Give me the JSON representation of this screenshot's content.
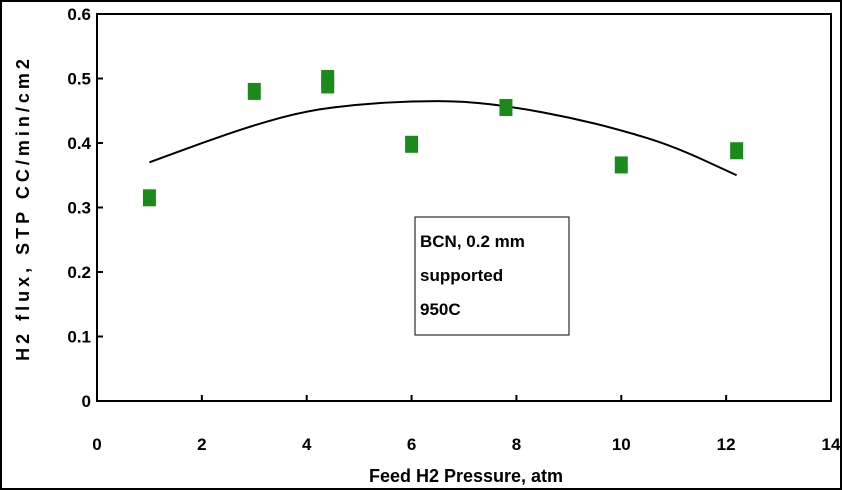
{
  "chart_data": {
    "type": "scatter",
    "xlabel": "Feed H2 Pressure, atm",
    "ylabel": "H2 flux, STP CC/min/cm2",
    "xlim": [
      0,
      14
    ],
    "ylim": [
      0,
      0.6
    ],
    "x_ticks": [
      "0",
      "2",
      "4",
      "6",
      "8",
      "10",
      "12",
      "14"
    ],
    "y_ticks": [
      "0",
      "0.1",
      "0.2",
      "0.3",
      "0.4",
      "0.5",
      "0.6"
    ],
    "grid": false,
    "series": [
      {
        "marker_color": "#1a8a1a",
        "marker": "square",
        "points": [
          {
            "x": 1.0,
            "y": 0.315
          },
          {
            "x": 3.0,
            "y": 0.48
          },
          {
            "x": 4.4,
            "y": 0.49
          },
          {
            "x": 4.4,
            "y": 0.5
          },
          {
            "x": 6.0,
            "y": 0.398
          },
          {
            "x": 7.8,
            "y": 0.455
          },
          {
            "x": 10.0,
            "y": 0.366
          },
          {
            "x": 12.2,
            "y": 0.388
          }
        ]
      }
    ],
    "trendline": {
      "color": "#000000",
      "points": [
        {
          "x": 1.0,
          "y": 0.37
        },
        {
          "x": 2.0,
          "y": 0.4
        },
        {
          "x": 3.0,
          "y": 0.428
        },
        {
          "x": 4.0,
          "y": 0.45
        },
        {
          "x": 5.0,
          "y": 0.46
        },
        {
          "x": 6.0,
          "y": 0.465
        },
        {
          "x": 7.0,
          "y": 0.465
        },
        {
          "x": 8.0,
          "y": 0.455
        },
        {
          "x": 9.0,
          "y": 0.44
        },
        {
          "x": 10.0,
          "y": 0.42
        },
        {
          "x": 11.0,
          "y": 0.395
        },
        {
          "x": 12.2,
          "y": 0.35
        }
      ]
    },
    "annotation": {
      "lines": [
        "BCN, 0.2 mm",
        "supported",
        "950C"
      ]
    }
  }
}
